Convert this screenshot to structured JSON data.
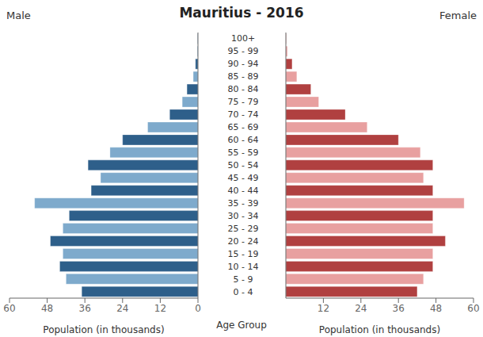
{
  "chart_data": [
    {
      "type": "bar",
      "orientation": "horizontal",
      "title": "Mauritius - 2016",
      "xlabel": "Population (in thousands)",
      "ylabel": "Age Group",
      "categories": [
        "0 - 4",
        "5 - 9",
        "10 - 14",
        "15 - 19",
        "20 - 24",
        "25 - 29",
        "30 - 34",
        "35 - 39",
        "40 - 44",
        "45 - 49",
        "50 - 54",
        "55 - 59",
        "60 - 64",
        "65 - 69",
        "70 - 74",
        "75 - 79",
        "80 - 84",
        "85 - 89",
        "90 - 94",
        "95 - 99",
        "100+"
      ],
      "series": [
        {
          "name": "Male",
          "colors": [
            "#2e5f8a",
            "#7eaacc",
            "#2e5f8a",
            "#7eaacc",
            "#2e5f8a",
            "#7eaacc",
            "#2e5f8a",
            "#7eaacc",
            "#2e5f8a",
            "#7eaacc",
            "#2e5f8a",
            "#7eaacc",
            "#2e5f8a",
            "#7eaacc",
            "#2e5f8a",
            "#7eaacc",
            "#2e5f8a",
            "#7eaacc",
            "#2e5f8a",
            "#7eaacc",
            "#2e5f8a"
          ],
          "values": [
            37.0,
            42.0,
            44.0,
            43.0,
            47.0,
            43.0,
            41.0,
            52.0,
            34.0,
            31.0,
            35.0,
            28.0,
            24.0,
            16.0,
            9.0,
            5.0,
            3.5,
            1.5,
            0.8,
            0.2,
            0.1
          ]
        }
      ],
      "xlim": [
        60,
        0
      ],
      "xticks": [
        60,
        48,
        36,
        24,
        12,
        0
      ],
      "grid": false
    },
    {
      "type": "bar",
      "orientation": "horizontal",
      "xlabel": "Population (in thousands)",
      "categories": [
        "0 - 4",
        "5 - 9",
        "10 - 14",
        "15 - 19",
        "20 - 24",
        "25 - 29",
        "30 - 34",
        "35 - 39",
        "40 - 44",
        "45 - 49",
        "50 - 54",
        "55 - 59",
        "60 - 64",
        "65 - 69",
        "70 - 74",
        "75 - 79",
        "80 - 84",
        "85 - 89",
        "90 - 94",
        "95 - 99",
        "100+"
      ],
      "series": [
        {
          "name": "Female",
          "colors": [
            "#b04040",
            "#e8a0a0",
            "#b04040",
            "#e8a0a0",
            "#b04040",
            "#e8a0a0",
            "#b04040",
            "#e8a0a0",
            "#b04040",
            "#e8a0a0",
            "#b04040",
            "#e8a0a0",
            "#b04040",
            "#e8a0a0",
            "#b04040",
            "#e8a0a0",
            "#b04040",
            "#e8a0a0",
            "#b04040",
            "#e8a0a0",
            "#b04040"
          ],
          "values": [
            42.0,
            44.0,
            47.0,
            47.0,
            51.0,
            47.0,
            47.0,
            57.0,
            47.0,
            44.0,
            47.0,
            43.0,
            36.0,
            26.0,
            19.0,
            10.5,
            8.0,
            3.5,
            2.0,
            0.5,
            0.1
          ]
        }
      ],
      "xlim": [
        0,
        60
      ],
      "xticks": [
        0,
        12,
        24,
        36,
        48,
        60
      ],
      "grid": false
    }
  ]
}
